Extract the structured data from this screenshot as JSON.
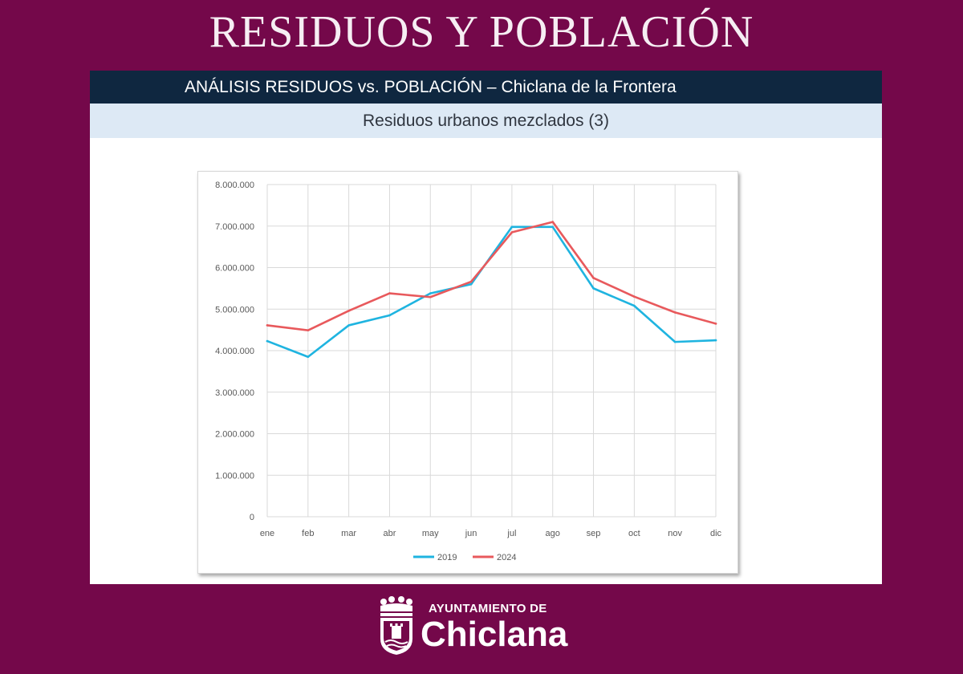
{
  "header": {
    "title": "RESIDUOS Y POBLACIÓN"
  },
  "slide": {
    "title": "ANÁLISIS RESIDUOS vs. POBLACIÓN – Chiclana de la Frontera",
    "subtitle": "Residuos urbanos mezclados (3)"
  },
  "chart_data": {
    "type": "line",
    "title": "",
    "xlabel": "",
    "ylabel": "",
    "categories": [
      "ene",
      "feb",
      "mar",
      "abr",
      "may",
      "jun",
      "jul",
      "ago",
      "sep",
      "oct",
      "nov",
      "dic"
    ],
    "ylim": [
      0,
      8000000
    ],
    "yticks": [
      {
        "value": 0,
        "label": "0"
      },
      {
        "value": 1000000,
        "label": "1.000.000"
      },
      {
        "value": 2000000,
        "label": "2.000.000"
      },
      {
        "value": 3000000,
        "label": "3.000.000"
      },
      {
        "value": 4000000,
        "label": "4.000.000"
      },
      {
        "value": 5000000,
        "label": "5.000.000"
      },
      {
        "value": 6000000,
        "label": "6.000.000"
      },
      {
        "value": 7000000,
        "label": "7.000.000"
      },
      {
        "value": 8000000,
        "label": "8.000.000"
      }
    ],
    "grid": true,
    "legend": "bottom",
    "series": [
      {
        "name": "2019",
        "color": "#1fb4e0",
        "values": [
          4230000,
          3850000,
          4610000,
          4850000,
          5380000,
          5600000,
          6980000,
          6980000,
          5500000,
          5080000,
          4210000,
          4250000
        ]
      },
      {
        "name": "2024",
        "color": "#e8595c",
        "values": [
          4610000,
          4490000,
          4960000,
          5380000,
          5290000,
          5660000,
          6850000,
          7100000,
          5750000,
          5300000,
          4920000,
          4650000
        ]
      }
    ]
  },
  "footer": {
    "logo_top": "AYUNTAMIENTO DE",
    "logo_name": "Chiclana"
  }
}
